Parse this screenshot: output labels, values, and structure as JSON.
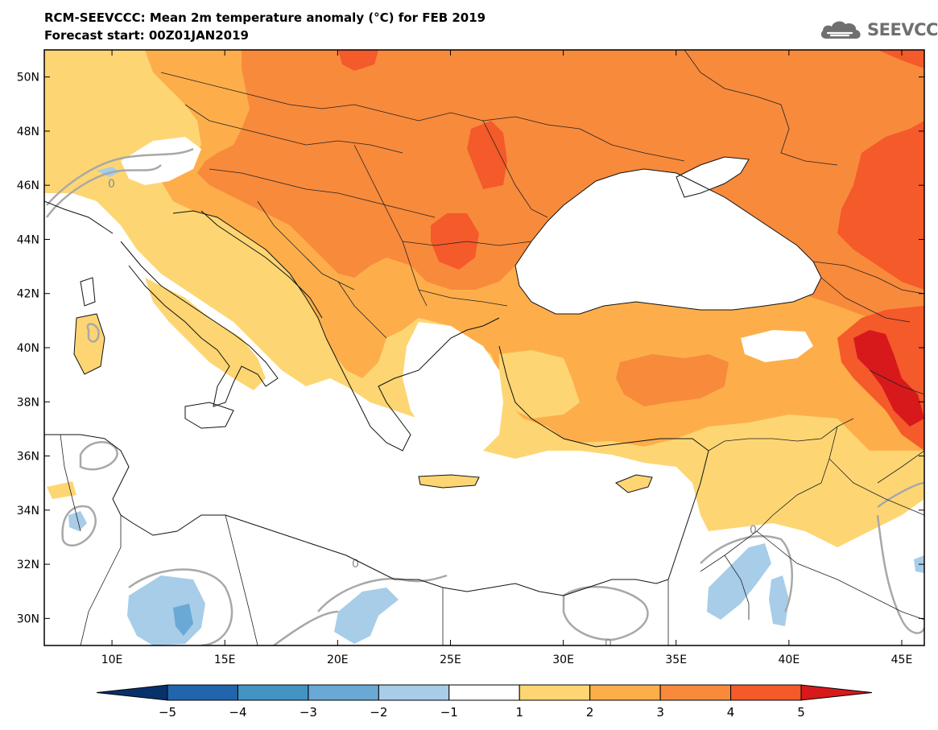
{
  "header": {
    "title_line1": "RCM-SEEVCCC: Mean 2m temperature anomaly (°C) for FEB 2019",
    "title_line2": "Forecast start: 00Z01JAN2019"
  },
  "logo": {
    "text": "SEEVCCC",
    "icon": "cloud-logo-icon",
    "color": "#6f6f6f"
  },
  "map": {
    "lon_range": [
      7,
      46
    ],
    "lat_range": [
      29,
      51
    ],
    "lat_ticks": [
      {
        "value": 50,
        "label": "50N"
      },
      {
        "value": 48,
        "label": "48N"
      },
      {
        "value": 46,
        "label": "46N"
      },
      {
        "value": 44,
        "label": "44N"
      },
      {
        "value": 42,
        "label": "42N"
      },
      {
        "value": 40,
        "label": "40N"
      },
      {
        "value": 38,
        "label": "38N"
      },
      {
        "value": 36,
        "label": "36N"
      },
      {
        "value": 34,
        "label": "34N"
      },
      {
        "value": 32,
        "label": "32N"
      },
      {
        "value": 30,
        "label": "30N"
      }
    ],
    "lon_ticks": [
      {
        "value": 10,
        "label": "10E"
      },
      {
        "value": 15,
        "label": "15E"
      },
      {
        "value": 20,
        "label": "20E"
      },
      {
        "value": 25,
        "label": "25E"
      },
      {
        "value": 30,
        "label": "30E"
      },
      {
        "value": 35,
        "label": "35E"
      },
      {
        "value": 40,
        "label": "40E"
      },
      {
        "value": 45,
        "label": "45E"
      }
    ],
    "contour_label": "0"
  },
  "colorbar": {
    "labels": [
      "−5",
      "−4",
      "−3",
      "−2",
      "−1",
      "1",
      "2",
      "3",
      "4",
      "5"
    ],
    "colors": [
      "#08306b",
      "#2166ac",
      "#4393c3",
      "#6aa8d6",
      "#a7cde8",
      "#ffffff",
      "#fdd673",
      "#fdae4b",
      "#f88a3c",
      "#f45a2a",
      "#d7191c"
    ]
  }
}
